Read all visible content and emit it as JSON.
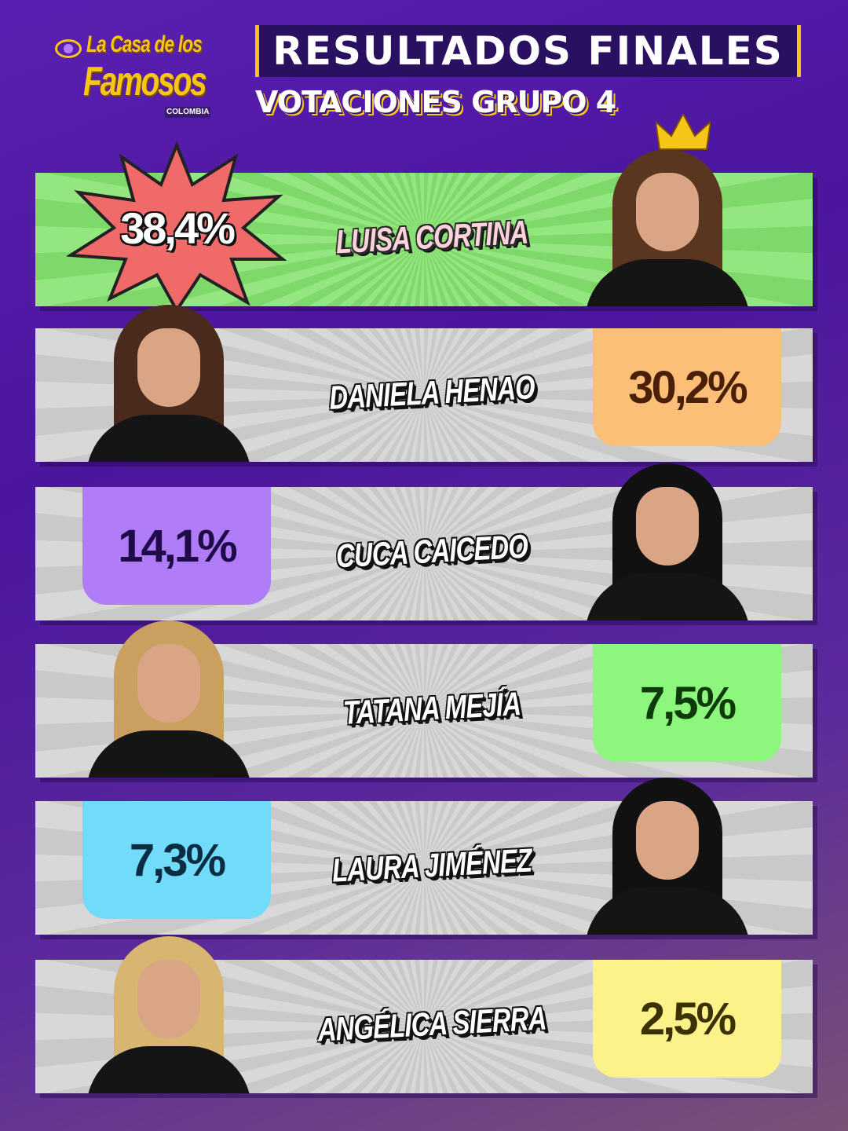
{
  "logo": {
    "line1": "La Casa de los",
    "line2": "Famosos",
    "line3": "COLOMBIA"
  },
  "header": {
    "title": "RESULTADOS FINALES",
    "subtitle": "VOTACIONES GRUPO 4"
  },
  "results": [
    {
      "name": "LUISA CORTINA",
      "percent": "38,4%",
      "value": 38.4,
      "color": "#f06a6a",
      "text_color": "#ffffff",
      "winner": true,
      "hair": "#5a3520"
    },
    {
      "name": "DANIELA HENAO",
      "percent": "30,2%",
      "value": 30.2,
      "color": "#fbbf77",
      "text_color": "#4a2008",
      "hair": "#4a2a1c"
    },
    {
      "name": "CUCA CAICEDO",
      "percent": "14,1%",
      "value": 14.1,
      "color": "#b07cf7",
      "text_color": "#1f0b47",
      "hair": "#111111"
    },
    {
      "name": "TATANA MEJÍA",
      "percent": "7,5%",
      "value": 7.5,
      "color": "#8cf77c",
      "text_color": "#0f3a0a",
      "hair": "#c9a060"
    },
    {
      "name": "LAURA JIMÉNEZ",
      "percent": "7,3%",
      "value": 7.3,
      "color": "#70dcf9",
      "text_color": "#0b2d44",
      "hair": "#111111"
    },
    {
      "name": "ANGÉLICA SIERRA",
      "percent": "2,5%",
      "value": 2.5,
      "color": "#fbf28a",
      "text_color": "#3a3205",
      "hair": "#d8b570"
    }
  ]
}
